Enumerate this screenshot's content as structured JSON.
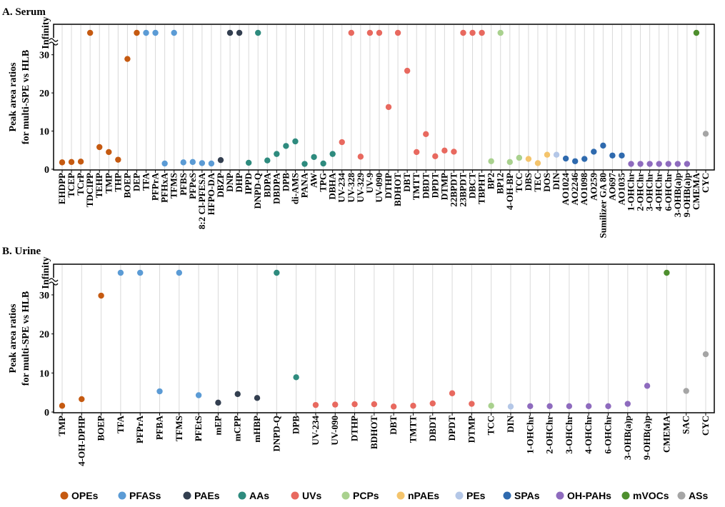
{
  "legend": [
    {
      "key": "OPEs",
      "color": "#C55A11"
    },
    {
      "key": "PFASs",
      "color": "#5B9BD5"
    },
    {
      "key": "PAEs",
      "color": "#333F50"
    },
    {
      "key": "AAs",
      "color": "#2E8B7E"
    },
    {
      "key": "UVs",
      "color": "#E8695F"
    },
    {
      "key": "PCPs",
      "color": "#A9D18E"
    },
    {
      "key": "nPAEs",
      "color": "#F4C46C"
    },
    {
      "key": "PEs",
      "color": "#B4C7E7"
    },
    {
      "key": "SPAs",
      "color": "#2F6AAE"
    },
    {
      "key": "OH-PAHs",
      "color": "#8E6BBE"
    },
    {
      "key": "mVOCs",
      "color": "#4E8F2E"
    },
    {
      "key": "ASs",
      "color": "#A5A5A5"
    }
  ],
  "chart_data": [
    {
      "type": "scatter",
      "title": "A. Serum",
      "ylabel_line1": "Peak area ratios",
      "ylabel_line2": "for multi-SPE vs HLB",
      "ylim": [
        0,
        32
      ],
      "yticks": [
        "0",
        "10",
        "20",
        "30"
      ],
      "infinity_label": "Infinity",
      "points": [
        {
          "name": "EHDPP",
          "group": "OPEs",
          "value": 1.8
        },
        {
          "name": "TCEP",
          "group": "OPEs",
          "value": 1.9
        },
        {
          "name": "TCrP",
          "group": "OPEs",
          "value": 2.0
        },
        {
          "name": "TDCIPP",
          "group": "OPEs",
          "value": "Infinity"
        },
        {
          "name": "TEHP",
          "group": "OPEs",
          "value": 5.8
        },
        {
          "name": "TMP",
          "group": "OPEs",
          "value": 4.5
        },
        {
          "name": "THP",
          "group": "OPEs",
          "value": 2.5
        },
        {
          "name": "BOEP",
          "group": "OPEs",
          "value": 28.9
        },
        {
          "name": "DEP",
          "group": "OPEs",
          "value": "Infinity"
        },
        {
          "name": "TFA",
          "group": "PFASs",
          "value": "Infinity"
        },
        {
          "name": "PFPrA",
          "group": "PFASs",
          "value": "Infinity"
        },
        {
          "name": "PFHxA",
          "group": "PFASs",
          "value": 1.5
        },
        {
          "name": "TFMS",
          "group": "PFASs",
          "value": "Infinity"
        },
        {
          "name": "PFBS",
          "group": "PFASs",
          "value": 1.8
        },
        {
          "name": "PFPeS",
          "group": "PFASs",
          "value": 1.9
        },
        {
          "name": "8:2 Cl-PFESA",
          "group": "PFASs",
          "value": 1.6
        },
        {
          "name": "HFPO-DA",
          "group": "PFASs",
          "value": 1.5
        },
        {
          "name": "DBZP",
          "group": "PAEs",
          "value": 2.4
        },
        {
          "name": "DNP",
          "group": "PAEs",
          "value": "Infinity"
        },
        {
          "name": "DHP",
          "group": "PAEs",
          "value": "Infinity"
        },
        {
          "name": "IPPD",
          "group": "AAs",
          "value": 1.7
        },
        {
          "name": "DNPD-Q",
          "group": "AAs",
          "value": "Infinity"
        },
        {
          "name": "BDPA",
          "group": "AAs",
          "value": 2.3
        },
        {
          "name": "DBDPA",
          "group": "AAs",
          "value": 4.0
        },
        {
          "name": "DPB",
          "group": "AAs",
          "value": 6.1
        },
        {
          "name": "di-AMS",
          "group": "AAs",
          "value": 7.3
        },
        {
          "name": "PANA",
          "group": "AAs",
          "value": 1.4
        },
        {
          "name": "AW",
          "group": "AAs",
          "value": 3.2
        },
        {
          "name": "TPG",
          "group": "AAs",
          "value": 1.5
        },
        {
          "name": "DBHA",
          "group": "AAs",
          "value": 4.0
        },
        {
          "name": "UV-234",
          "group": "UVs",
          "value": 7.1
        },
        {
          "name": "UV-328",
          "group": "UVs",
          "value": "Infinity"
        },
        {
          "name": "UV-329",
          "group": "UVs",
          "value": 3.3
        },
        {
          "name": "UV-9",
          "group": "UVs",
          "value": "Infinity"
        },
        {
          "name": "UV-090",
          "group": "UVs",
          "value": "Infinity"
        },
        {
          "name": "DTHP",
          "group": "UVs",
          "value": 16.3
        },
        {
          "name": "BDHOT",
          "group": "UVs",
          "value": "Infinity"
        },
        {
          "name": "DBT",
          "group": "UVs",
          "value": 25.8
        },
        {
          "name": "TMTT",
          "group": "UVs",
          "value": 4.5
        },
        {
          "name": "DBDT",
          "group": "UVs",
          "value": 9.2
        },
        {
          "name": "DPDT",
          "group": "UVs",
          "value": 3.4
        },
        {
          "name": "DTMP",
          "group": "UVs",
          "value": 4.9
        },
        {
          "name": "22BPDT",
          "group": "UVs",
          "value": 4.6
        },
        {
          "name": "23BPDT",
          "group": "UVs",
          "value": "Infinity"
        },
        {
          "name": "DBCT",
          "group": "UVs",
          "value": "Infinity"
        },
        {
          "name": "TBPHT",
          "group": "UVs",
          "value": "Infinity"
        },
        {
          "name": "BP2",
          "group": "PCPs",
          "value": 2.1
        },
        {
          "name": "BP12",
          "group": "PCPs",
          "value": "Infinity"
        },
        {
          "name": "4-OH-BP",
          "group": "PCPs",
          "value": 1.9
        },
        {
          "name": "TCC",
          "group": "PCPs",
          "value": 3.0
        },
        {
          "name": "DBS",
          "group": "nPAEs",
          "value": 2.7
        },
        {
          "name": "TEC",
          "group": "nPAEs",
          "value": 1.6
        },
        {
          "name": "DOS",
          "group": "nPAEs",
          "value": 3.8
        },
        {
          "name": "DIN",
          "group": "PEs",
          "value": 3.8
        },
        {
          "name": "AO1024",
          "group": "SPAs",
          "value": 2.8
        },
        {
          "name": "AO2246",
          "group": "SPAs",
          "value": 2.1
        },
        {
          "name": "AO1098",
          "group": "SPAs",
          "value": 2.7
        },
        {
          "name": "AO259",
          "group": "SPAs",
          "value": 4.6
        },
        {
          "name": "Sumilizer GA 80",
          "group": "SPAs",
          "value": 6.2
        },
        {
          "name": "AO697",
          "group": "SPAs",
          "value": 3.6
        },
        {
          "name": "AO1035",
          "group": "SPAs",
          "value": 3.6
        },
        {
          "name": "1-OHChr",
          "group": "OH-PAHs",
          "value": 1.4
        },
        {
          "name": "2-OHChr",
          "group": "OH-PAHs",
          "value": 1.4
        },
        {
          "name": "3-OHChr",
          "group": "OH-PAHs",
          "value": 1.4
        },
        {
          "name": "4-OHChr",
          "group": "OH-PAHs",
          "value": 1.4
        },
        {
          "name": "6-OHChr",
          "group": "OH-PAHs",
          "value": 1.4
        },
        {
          "name": "3-OHB(a)p",
          "group": "OH-PAHs",
          "value": 1.4
        },
        {
          "name": "9-OHB(a)p",
          "group": "OH-PAHs",
          "value": 1.4
        },
        {
          "name": "CMEMA",
          "group": "mVOCs",
          "value": "Infinity"
        },
        {
          "name": "CYC",
          "group": "ASs",
          "value": 9.3
        }
      ]
    },
    {
      "type": "scatter",
      "title": "B. Urine",
      "ylabel_line1": "Peak area ratios",
      "ylabel_line2": "for multi-SPE vs HLB",
      "ylim": [
        0,
        32
      ],
      "yticks": [
        "0",
        "10",
        "20",
        "30"
      ],
      "infinity_label": "Infinity",
      "points": [
        {
          "name": "TMP",
          "group": "OPEs",
          "value": 1.6
        },
        {
          "name": "4-OH-DPHP",
          "group": "OPEs",
          "value": 3.3
        },
        {
          "name": "BOEP",
          "group": "OPEs",
          "value": 29.8
        },
        {
          "name": "TFA",
          "group": "PFASs",
          "value": "Infinity"
        },
        {
          "name": "PFPrA",
          "group": "PFASs",
          "value": "Infinity"
        },
        {
          "name": "PFBA",
          "group": "PFASs",
          "value": 5.3
        },
        {
          "name": "TFMS",
          "group": "PFASs",
          "value": "Infinity"
        },
        {
          "name": "PFEtS",
          "group": "PFASs",
          "value": 4.3
        },
        {
          "name": "mEP",
          "group": "PAEs",
          "value": 2.4
        },
        {
          "name": "mCPP",
          "group": "PAEs",
          "value": 4.6
        },
        {
          "name": "mHBP",
          "group": "PAEs",
          "value": 3.6
        },
        {
          "name": "DNPD-Q",
          "group": "AAs",
          "value": "Infinity"
        },
        {
          "name": "DPB",
          "group": "AAs",
          "value": 8.9
        },
        {
          "name": "UV-234",
          "group": "UVs",
          "value": 1.8
        },
        {
          "name": "UV-090",
          "group": "UVs",
          "value": 1.9
        },
        {
          "name": "DTHP",
          "group": "UVs",
          "value": 2.0
        },
        {
          "name": "BDHOT",
          "group": "UVs",
          "value": 2.0
        },
        {
          "name": "DBT",
          "group": "UVs",
          "value": 1.4
        },
        {
          "name": "TMTT",
          "group": "UVs",
          "value": 1.6
        },
        {
          "name": "DBDT",
          "group": "UVs",
          "value": 2.2
        },
        {
          "name": "DPDT",
          "group": "UVs",
          "value": 4.8
        },
        {
          "name": "DTMP",
          "group": "UVs",
          "value": 2.1
        },
        {
          "name": "TCC",
          "group": "PCPs",
          "value": 1.6
        },
        {
          "name": "DIN",
          "group": "PEs",
          "value": 1.4
        },
        {
          "name": "1-OHChr",
          "group": "OH-PAHs",
          "value": 1.5
        },
        {
          "name": "2-OHChr",
          "group": "OH-PAHs",
          "value": 1.5
        },
        {
          "name": "3-OHChr",
          "group": "OH-PAHs",
          "value": 1.5
        },
        {
          "name": "4-OHChr",
          "group": "OH-PAHs",
          "value": 1.5
        },
        {
          "name": "6-OHChr",
          "group": "OH-PAHs",
          "value": 1.5
        },
        {
          "name": "3-OHB(a)p",
          "group": "OH-PAHs",
          "value": 2.1
        },
        {
          "name": "9-OHB(a)p",
          "group": "OH-PAHs",
          "value": 6.7
        },
        {
          "name": "CMEMA",
          "group": "mVOCs",
          "value": "Infinity"
        },
        {
          "name": "SAC",
          "group": "ASs",
          "value": 5.4
        },
        {
          "name": "CYC",
          "group": "ASs",
          "value": 14.8
        }
      ]
    }
  ]
}
